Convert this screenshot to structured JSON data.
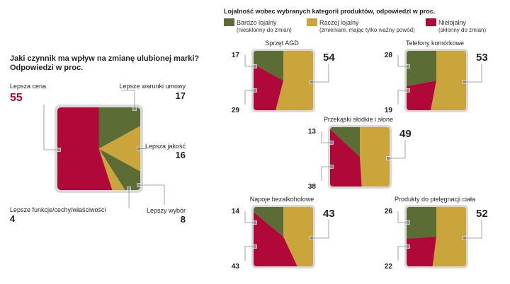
{
  "colors": {
    "olive": "#5c6c35",
    "gold": "#c9a53c",
    "crimson": "#b00838",
    "frame": "#d9d9d9",
    "text": "#231f20",
    "accent": "#b00838"
  },
  "chart_data": [
    {
      "type": "pie",
      "title_line1": "Jaki czynnik ma wpływ na zmianę ulubionej marki?",
      "title_line2": "Odpowiedzi w proc.",
      "slices": [
        {
          "label": "Lepsza cena",
          "value": 55,
          "color": "#b00838"
        },
        {
          "label": "Lepsze warunki umowy",
          "value": 17,
          "color": "#5c6c35"
        },
        {
          "label": "Lepsza jakość",
          "value": 16,
          "color": "#c9a53c"
        },
        {
          "label": "Lepszy wybór",
          "value": 8,
          "color": "#5c6c35"
        },
        {
          "label": "Lepsze funkcje/cechy/właściwości",
          "value": 4,
          "color": "#c9a53c"
        }
      ]
    },
    {
      "type": "pie",
      "title": "Lojalność wobec wybranych kategorii produktów, odpowiedzi w proc.",
      "legend": [
        {
          "name": "Bardzo lojalny",
          "note": "(niesklonny do zmian)",
          "color": "#5c6c35"
        },
        {
          "name": "Raczej lojalny",
          "note": "(zmieniam, mając tylko ważny powód)",
          "color": "#c9a53c"
        },
        {
          "name": "Nielojalny",
          "note": "(skłonny do zmian)",
          "color": "#b00838"
        }
      ],
      "categories": [
        {
          "name": "Sprzęt AGD",
          "bardzo": 17,
          "raczej": 54,
          "nielojalny": 29
        },
        {
          "name": "Telefony komórkowe",
          "bardzo": 28,
          "raczej": 53,
          "nielojalny": 19
        },
        {
          "name": "Przekąski słodkie i słone",
          "bardzo": 13,
          "raczej": 49,
          "nielojalny": 38
        },
        {
          "name": "Napoje bezalkoholowe",
          "bardzo": 14,
          "raczej": 43,
          "nielojalny": 43
        },
        {
          "name": "Produkty do pielęgnacji ciała",
          "bardzo": 26,
          "raczej": 52,
          "nielojalny": 22
        }
      ]
    }
  ]
}
